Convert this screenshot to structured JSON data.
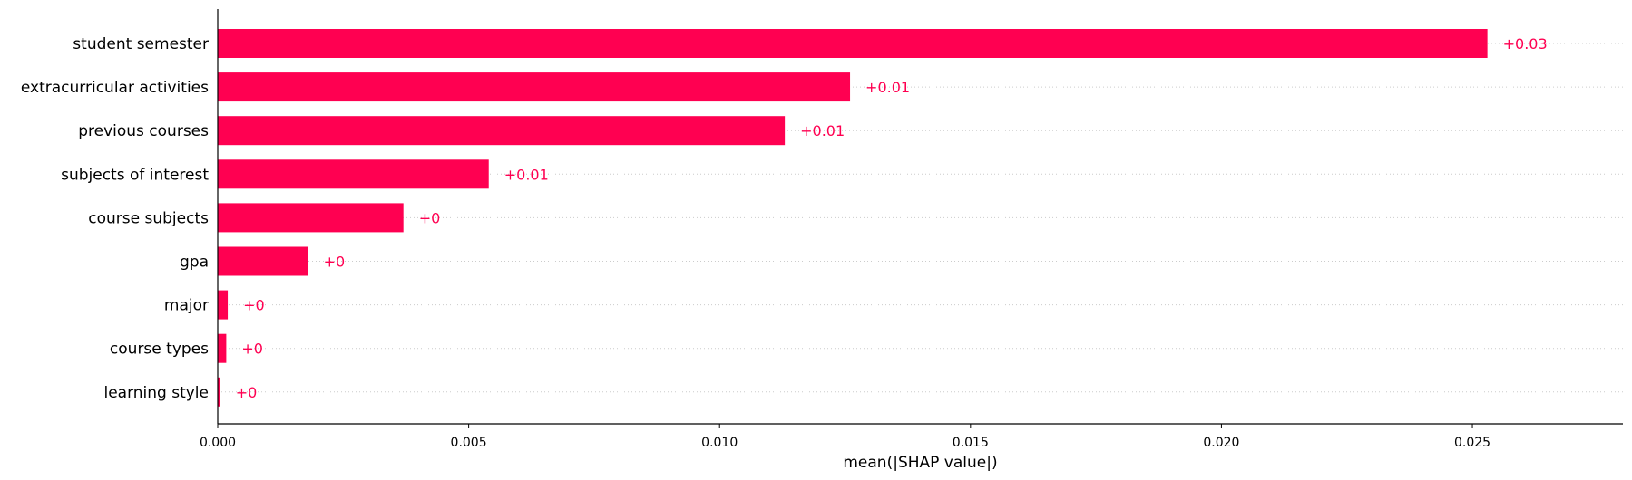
{
  "chart_data": {
    "type": "bar",
    "orientation": "horizontal",
    "categories": [
      "student semester",
      "extracurricular activities",
      "previous courses",
      "subjects of interest",
      "course subjects",
      "gpa",
      "major",
      "course types",
      "learning style"
    ],
    "values": [
      0.0253,
      0.0126,
      0.0113,
      0.0054,
      0.0037,
      0.0018,
      0.0002,
      0.00017,
      5e-05
    ],
    "data_labels": [
      "+0.03",
      "+0.01",
      "+0.01",
      "+0.01",
      "+0",
      "+0",
      "+0",
      "+0",
      "+0"
    ],
    "xlabel": "mean(|SHAP value|)",
    "xlim": [
      0,
      0.028
    ],
    "xticks": [
      0.0,
      0.005,
      0.01,
      0.015,
      0.02,
      0.025
    ],
    "xtick_labels": [
      "0.000",
      "0.005",
      "0.010",
      "0.015",
      "0.020",
      "0.025"
    ],
    "grid": "horizontal dotted",
    "bar_color": "#ff0051",
    "label_color": "#ff0051"
  }
}
